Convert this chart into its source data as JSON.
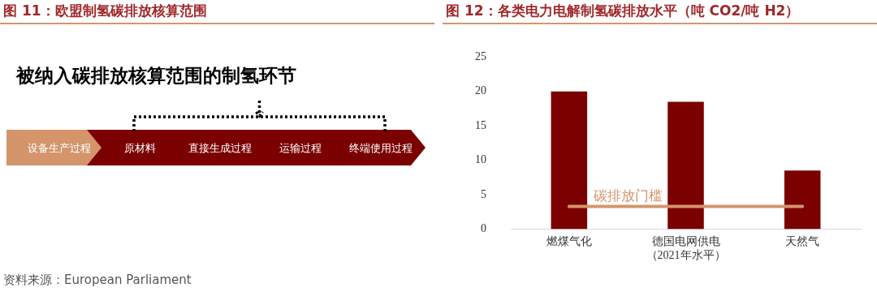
{
  "chart_data": [
    {
      "type": "other",
      "title": "图 11：欧盟制氢碳排放核算范围",
      "subtitle": "被纳入碳排放核算范围的制氢环节",
      "categories": [
        "设备生产过程",
        "原材料",
        "直接生成过程",
        "运输过程",
        "终端使用过程"
      ],
      "colors": [
        "#d4956b",
        "#7b0000",
        "#7b0000",
        "#7b0000",
        "#7b0000"
      ],
      "annotations": [
        "资料来源：European Parliament"
      ]
    },
    {
      "type": "bar",
      "title": "图 12：各类电力电解制氢碳排放水平（吨 CO2/吨 H2）",
      "categories": [
        "燃煤气化",
        "德国电网供电（2021年水平）",
        "天然气"
      ],
      "values": [
        20.0,
        18.5,
        8.5
      ],
      "color": "#7b0000",
      "ylim": [
        0,
        25
      ],
      "yticks": [
        0,
        5,
        10,
        15,
        20,
        25
      ],
      "grid": false,
      "legend": false,
      "ref_lines": [
        {
          "axis": "y",
          "value": 3.3,
          "label": "碳排放门槛",
          "color": "#d4956b"
        }
      ]
    }
  ]
}
